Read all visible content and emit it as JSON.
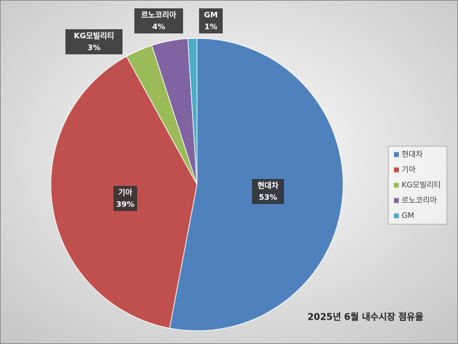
{
  "chart_data": {
    "type": "pie",
    "title": "2025년 6월 내수시장 점유율",
    "categories": [
      "현대차",
      "기아",
      "KG모빌리티",
      "르노코리아",
      "GM"
    ],
    "values": [
      53,
      39,
      3,
      4,
      1
    ],
    "value_labels": [
      "53%",
      "39%",
      "3%",
      "4%",
      "1%"
    ],
    "colors": [
      "#4f81bd",
      "#c0504d",
      "#9bbb59",
      "#8064a2",
      "#4bacc6"
    ],
    "legend": "right"
  }
}
